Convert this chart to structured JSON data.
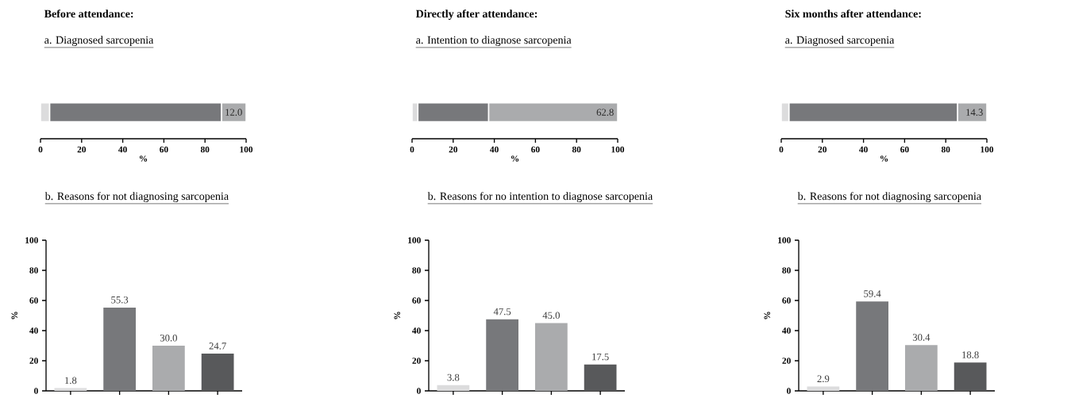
{
  "chart_data": [
    {
      "type": "bar",
      "orientation": "horizontal",
      "stacked": true,
      "title": "Before attendance:",
      "subtitle": "a. Diagnosed sarcopenia",
      "xlabel": "%",
      "categories": [
        null
      ],
      "xlim": [
        0,
        100
      ],
      "xticks": [
        0,
        20,
        40,
        60,
        80,
        100
      ],
      "series": [
        {
          "color": "#dcdcdd",
          "values": [
            4.4
          ]
        },
        {
          "color": "#77787b",
          "values": [
            83.6
          ]
        },
        {
          "color": "#aaabad",
          "values": [
            12.0
          ],
          "value_labels": [
            "12.0"
          ]
        }
      ]
    },
    {
      "type": "bar",
      "orientation": "horizontal",
      "stacked": true,
      "title": "Directly after attendance:",
      "subtitle": "a. Intention to diagnose sarcopenia",
      "xlabel": "%",
      "categories": [
        null
      ],
      "xlim": [
        0,
        100
      ],
      "xticks": [
        0,
        20,
        40,
        60,
        80,
        100
      ],
      "series": [
        {
          "color": "#dcdcdd",
          "values": [
            2.8
          ]
        },
        {
          "color": "#77787b",
          "values": [
            34.4
          ]
        },
        {
          "color": "#aaabad",
          "values": [
            62.8
          ],
          "value_labels": [
            "62.8"
          ]
        }
      ]
    },
    {
      "type": "bar",
      "orientation": "horizontal",
      "stacked": true,
      "title": "Six months after attendance:",
      "subtitle": "a. Diagnosed sarcopenia",
      "xlabel": "%",
      "categories": [
        null
      ],
      "xlim": [
        0,
        100
      ],
      "xticks": [
        0,
        20,
        40,
        60,
        80,
        100
      ],
      "series": [
        {
          "color": "#dcdcdd",
          "values": [
            3.7
          ]
        },
        {
          "color": "#77787b",
          "values": [
            82.0
          ]
        },
        {
          "color": "#aaabad",
          "values": [
            14.3
          ],
          "value_labels": [
            "14.3"
          ]
        }
      ]
    },
    {
      "type": "bar",
      "title": "b. Reasons for not diagnosing sarcopenia",
      "ylabel": "%",
      "categories": [
        null,
        null,
        null,
        null
      ],
      "values": [
        1.8,
        55.3,
        30.0,
        24.7
      ],
      "value_labels": [
        "1.8",
        "55.3",
        "30.0",
        "24.7"
      ],
      "colors": [
        "#dcdcdd",
        "#77787b",
        "#aaabad",
        "#58595b"
      ],
      "ylim": [
        0,
        100
      ],
      "yticks": [
        0,
        20,
        40,
        60,
        80,
        100
      ]
    },
    {
      "type": "bar",
      "title": "b. Reasons for no intention to diagnose sarcopenia",
      "ylabel": "%",
      "categories": [
        null,
        null,
        null,
        null
      ],
      "values": [
        3.8,
        47.5,
        45.0,
        17.5
      ],
      "value_labels": [
        "3.8",
        "47.5",
        "45.0",
        "17.5"
      ],
      "colors": [
        "#dcdcdd",
        "#77787b",
        "#aaabad",
        "#58595b"
      ],
      "ylim": [
        0,
        100
      ],
      "yticks": [
        0,
        20,
        40,
        60,
        80,
        100
      ]
    },
    {
      "type": "bar",
      "title": "b. Reasons for not diagnosing sarcopenia",
      "ylabel": "%",
      "categories": [
        null,
        null,
        null,
        null
      ],
      "values": [
        2.9,
        59.4,
        30.4,
        18.8
      ],
      "value_labels": [
        "2.9",
        "59.4",
        "30.4",
        "18.8"
      ],
      "colors": [
        "#dcdcdd",
        "#77787b",
        "#aaabad",
        "#58595b"
      ],
      "ylim": [
        0,
        100
      ],
      "yticks": [
        0,
        20,
        40,
        60,
        80,
        100
      ]
    }
  ]
}
